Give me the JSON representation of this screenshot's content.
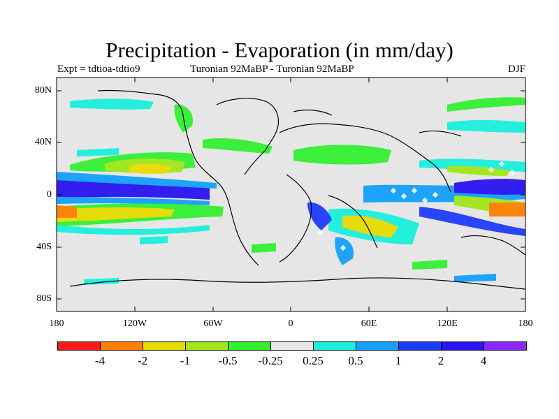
{
  "header": {
    "title": "Precipitation - Evaporation (in mm/day)",
    "experiment": "Expt = tdtioa-tdtio9",
    "period": "Turonian  92MaBP - Turonian  92MaBP",
    "season": "DJF"
  },
  "map": {
    "background_color": "#e6e6e6",
    "y_ticks": [
      "80N",
      "40N",
      "0",
      "40S",
      "80S"
    ],
    "x_ticks": [
      "180",
      "120W",
      "60W",
      "0",
      "60E",
      "120E",
      "180"
    ]
  },
  "colorbar": {
    "colors": [
      "#ff1a1a",
      "#ff8000",
      "#e6dc00",
      "#a0e61a",
      "#32f032",
      "#e6e6e6",
      "#1af0dc",
      "#14a0ff",
      "#1e3cff",
      "#2814f0",
      "#8c28ff"
    ],
    "labels": [
      "-4",
      "-2",
      "-1",
      "-0.5",
      "-0.25",
      "0.25",
      "0.5",
      "1",
      "2",
      "4"
    ]
  }
}
